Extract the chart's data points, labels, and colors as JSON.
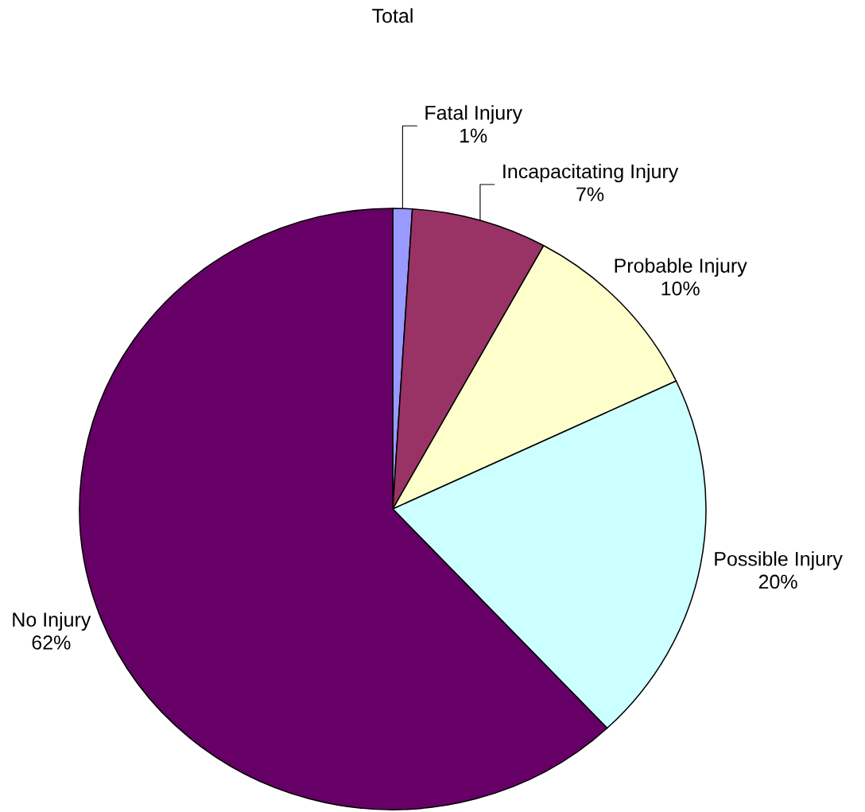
{
  "chart_data": {
    "type": "pie",
    "title": "Total",
    "categories": [
      "Fatal Injury",
      "Incapacitating Injury",
      "Probable Injury",
      "Possible Injury",
      "No Injury"
    ],
    "values": [
      1,
      7,
      10,
      20,
      62
    ],
    "colors": [
      "#9999ff",
      "#993366",
      "#ffffcc",
      "#ccffff",
      "#660066"
    ],
    "value_labels": [
      "1%",
      "7%",
      "10%",
      "20%",
      "62%"
    ]
  }
}
